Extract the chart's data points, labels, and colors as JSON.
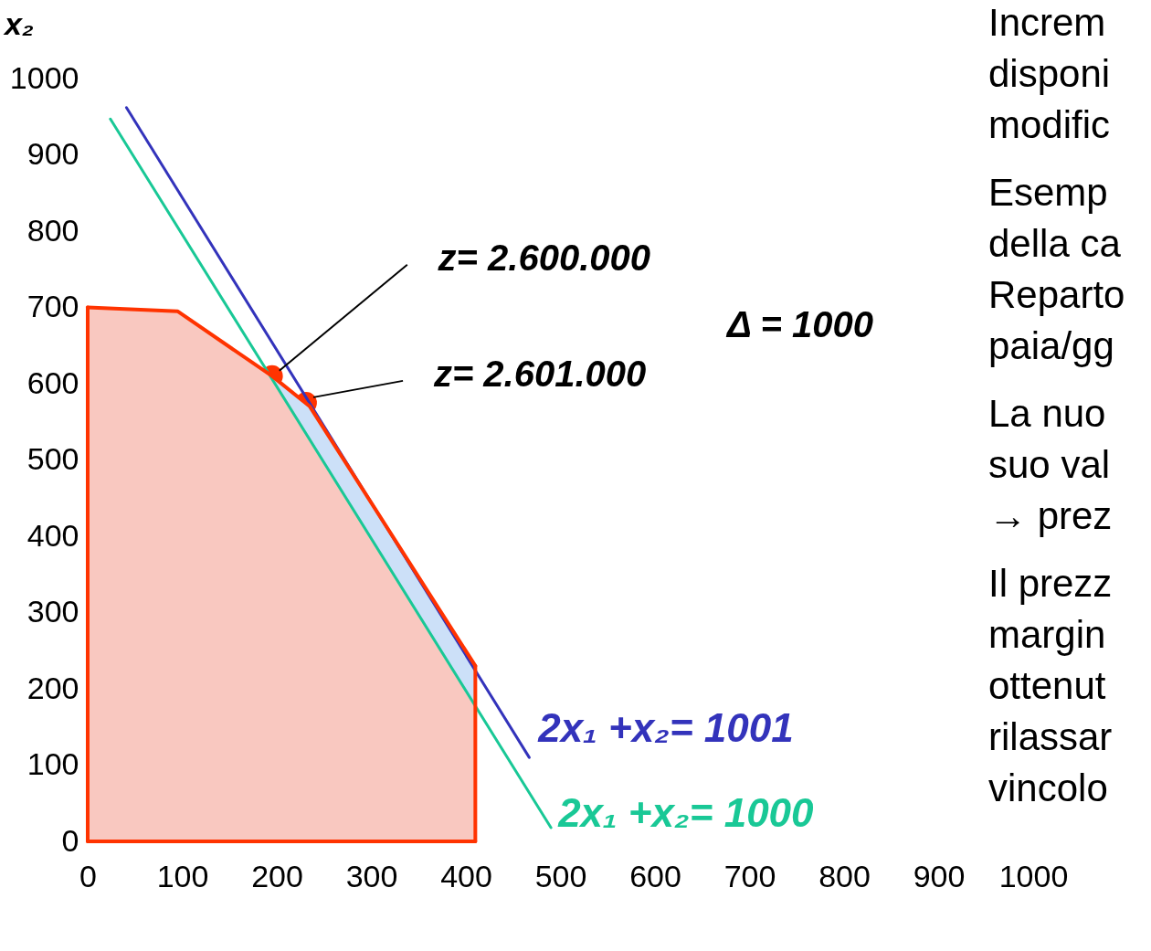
{
  "chart_data": {
    "type": "line",
    "ylabel": "x₂",
    "xlim": [
      0,
      1000
    ],
    "ylim": [
      0,
      1000
    ],
    "xticks": [
      0,
      100,
      200,
      300,
      400,
      500,
      600,
      700,
      800,
      900,
      1000
    ],
    "yticks": [
      0,
      100,
      200,
      300,
      400,
      500,
      600,
      700,
      800,
      900,
      1000
    ],
    "grid": false,
    "series": [
      {
        "type": "scatter",
        "color": "#ff3300",
        "marker": "circle",
        "x": [
          195,
          231
        ],
        "values": [
          610,
          575
        ]
      },
      {
        "type": "area",
        "color": "#cce0f8",
        "x": [
          195,
          235,
          410
        ],
        "values": [
          610,
          570,
          230
        ]
      },
      {
        "type": "area",
        "color": "#f9c8c0",
        "x": [
          0,
          95,
          195,
          410
        ],
        "values": [
          700,
          695,
          610,
          176
        ]
      },
      {
        "type": "line",
        "name": "2x₁ +x₂= 1000",
        "color": "#19c896",
        "x": [
          24,
          490
        ],
        "values": [
          947,
          18
        ]
      },
      {
        "type": "line",
        "name": "2x₁ +x₂= 1001",
        "color": "#3333bb",
        "x": [
          41,
          467
        ],
        "values": [
          962,
          110
        ]
      },
      {
        "type": "line",
        "color": "#ff3300",
        "x": [
          0,
          95,
          195,
          235,
          410
        ],
        "values": [
          700,
          695,
          610,
          570,
          230
        ]
      },
      {
        "type": "line",
        "color": "#ff3300",
        "x": [
          0,
          0
        ],
        "values": [
          0,
          700
        ]
      },
      {
        "type": "line",
        "color": "#ff3300",
        "x": [
          410,
          410
        ],
        "values": [
          230,
          0
        ]
      },
      {
        "type": "line",
        "color": "#ff3300",
        "x": [
          0,
          410
        ],
        "values": [
          0,
          0
        ]
      }
    ],
    "annotations": [
      {
        "text": "z= 2.600.000",
        "x": 195,
        "y": 610
      },
      {
        "text": "z= 2.601.000",
        "x": 231,
        "y": 575
      },
      "Δ = 1000",
      "Increm",
      "disponi",
      "modific",
      "Esemp",
      "della ca",
      "Reparto",
      "paia/gg",
      "La nuo",
      "suo val",
      "→ prez",
      "Il prezz",
      "margin",
      "ottenut",
      "rilassar",
      "vincolo"
    ]
  }
}
